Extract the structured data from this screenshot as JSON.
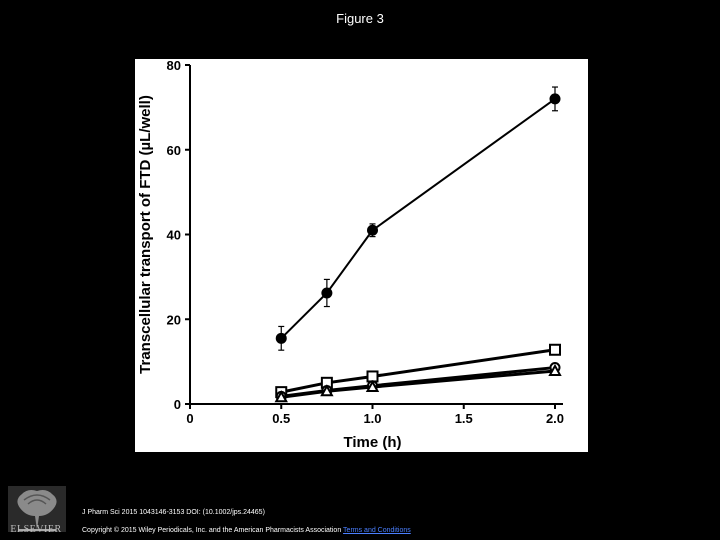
{
  "page": {
    "title": "Figure 3",
    "citation": "J Pharm Sci 2015 1043146-3153 DOI: (10.1002/jps.24465)",
    "copyright": "Copyright © 2015 Wiley Periodicals, Inc. and the American Pharmacists Association ",
    "terms_link": "Terms and Conditions",
    "logo_text": "ELSEVIER"
  },
  "chart_data": {
    "type": "line",
    "title": "",
    "xlabel": "Time (h)",
    "ylabel": "Transcellular transport of FTD (µL/well)",
    "xlim": [
      0,
      2.0
    ],
    "ylim": [
      0,
      80
    ],
    "xticks": [
      "0",
      "0.5",
      "1.0",
      "1.5",
      "2.0"
    ],
    "yticks": [
      "0",
      "20",
      "40",
      "60",
      "80"
    ],
    "grid": false,
    "legend": "none",
    "series": [
      {
        "marker": "filled-circle",
        "x": [
          0.5,
          0.75,
          1.0,
          2.0
        ],
        "y": [
          15.5,
          26.2,
          41.0,
          72.0
        ],
        "err": [
          2.8,
          3.2,
          1.5,
          2.8
        ]
      },
      {
        "marker": "open-square",
        "x": [
          0.5,
          0.75,
          1.0,
          2.0
        ],
        "y": [
          2.8,
          5.0,
          6.5,
          12.8
        ],
        "err": [
          0,
          0,
          0,
          0
        ]
      },
      {
        "marker": "open-circle",
        "x": [
          0.5,
          0.75,
          1.0,
          2.0
        ],
        "y": [
          1.8,
          3.2,
          4.3,
          8.6
        ],
        "err": [
          0,
          0,
          0,
          0
        ]
      },
      {
        "marker": "open-triangle",
        "x": [
          0.5,
          0.75,
          1.0,
          2.0
        ],
        "y": [
          1.6,
          3.0,
          4.0,
          7.8
        ],
        "err": [
          0,
          0,
          0,
          0
        ]
      }
    ]
  }
}
